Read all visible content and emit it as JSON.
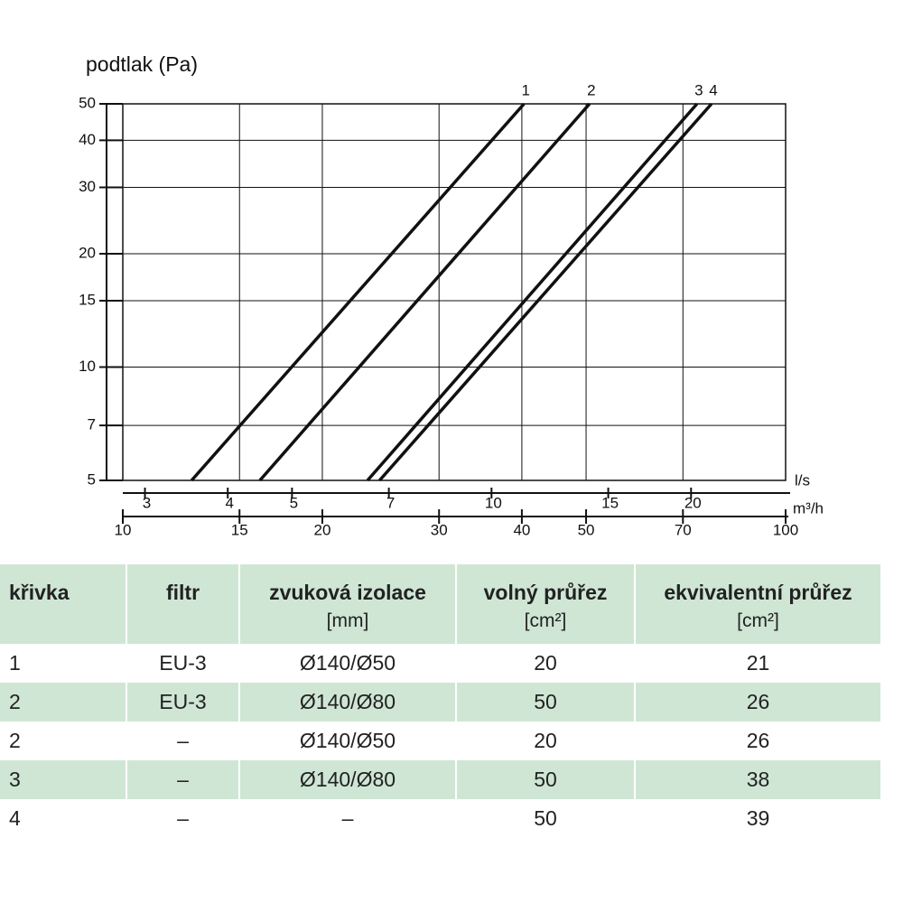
{
  "chart_data": {
    "type": "line",
    "y_label": "podtlak (Pa)",
    "log_y": true,
    "ylim": [
      5,
      50
    ],
    "yticks": [
      5,
      7,
      10,
      15,
      20,
      30,
      40,
      50
    ],
    "log_x": true,
    "x_label": "m³/h",
    "xlim": [
      10,
      100
    ],
    "xticks": [
      10,
      15,
      20,
      30,
      40,
      50,
      70,
      100
    ],
    "x2_label": "l/s",
    "x2lim": [
      2.7778,
      27.778
    ],
    "x2ticks": [
      3,
      4,
      5,
      7,
      10,
      15,
      20
    ],
    "grid": true,
    "series": [
      {
        "name": "1",
        "color": "#111111",
        "x": [
          12.7,
          40.3
        ],
        "values": [
          5,
          50
        ]
      },
      {
        "name": "2",
        "color": "#111111",
        "x": [
          16.1,
          50.6
        ],
        "values": [
          5,
          50
        ]
      },
      {
        "name": "3",
        "color": "#111111",
        "x": [
          23.4,
          73.5
        ],
        "values": [
          5,
          50
        ]
      },
      {
        "name": "4",
        "color": "#111111",
        "x": [
          24.4,
          77.3
        ],
        "values": [
          5,
          50
        ]
      }
    ]
  },
  "table": {
    "columns": [
      {
        "title": "křivka"
      },
      {
        "title": "filtr"
      },
      {
        "title": "zvuková izolace",
        "unit": "[mm]"
      },
      {
        "title": "volný průřez",
        "unit": "[cm²]"
      },
      {
        "title": "ekvivalentní průřez",
        "unit": "[cm²]"
      }
    ],
    "rows": [
      [
        "1",
        "EU-3",
        "Ø140/Ø50",
        "20",
        "21"
      ],
      [
        "2",
        "EU-3",
        "Ø140/Ø80",
        "50",
        "26"
      ],
      [
        "2",
        "–",
        "Ø140/Ø50",
        "20",
        "26"
      ],
      [
        "3",
        "–",
        "Ø140/Ø80",
        "50",
        "38"
      ],
      [
        "4",
        "–",
        "–",
        "50",
        "39"
      ]
    ]
  }
}
